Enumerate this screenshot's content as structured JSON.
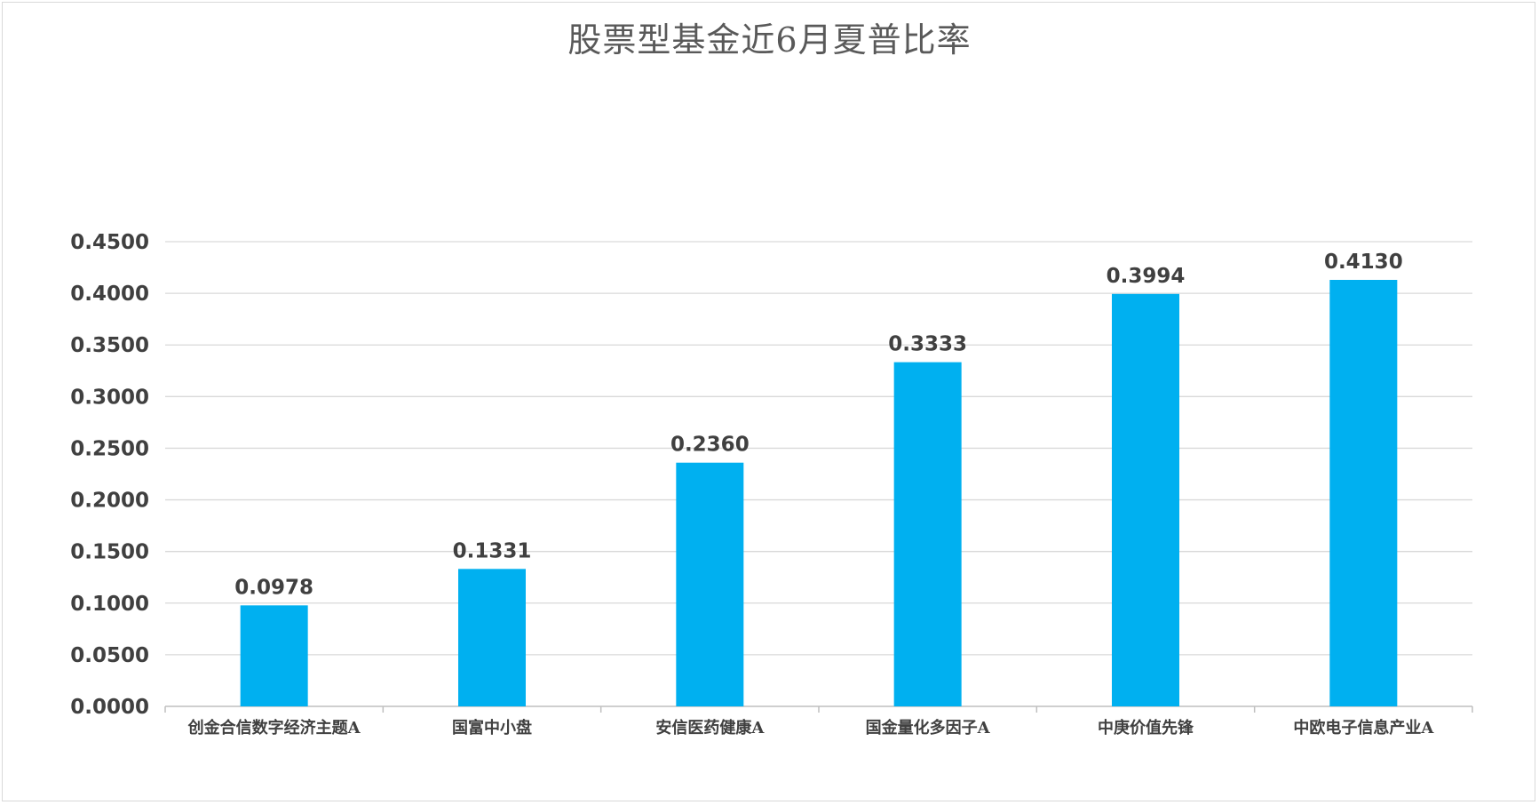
{
  "chart_data": {
    "type": "bar",
    "title": "股票型基金近6月夏普比率",
    "categories": [
      "创金合信数字经济主题A",
      "国富中小盘",
      "安信医药健康A",
      "国金量化多因子A",
      "中庚价值先锋",
      "中欧电子信息产业A"
    ],
    "values": [
      0.0978,
      0.1331,
      0.236,
      0.3333,
      0.3994,
      0.413
    ],
    "data_labels": [
      "0.0978",
      "0.1331",
      "0.2360",
      "0.3333",
      "0.3994",
      "0.4130"
    ],
    "y_ticks": [
      "0.0000",
      "0.0500",
      "0.1000",
      "0.1500",
      "0.2000",
      "0.2500",
      "0.3000",
      "0.3500",
      "0.4000",
      "0.4500"
    ],
    "ylim": [
      0,
      0.45
    ],
    "xlabel": "",
    "ylabel": "",
    "grid": true,
    "legend": "none",
    "bar_color": "#00b0f0",
    "gridline_color": "#d9d9d9"
  }
}
